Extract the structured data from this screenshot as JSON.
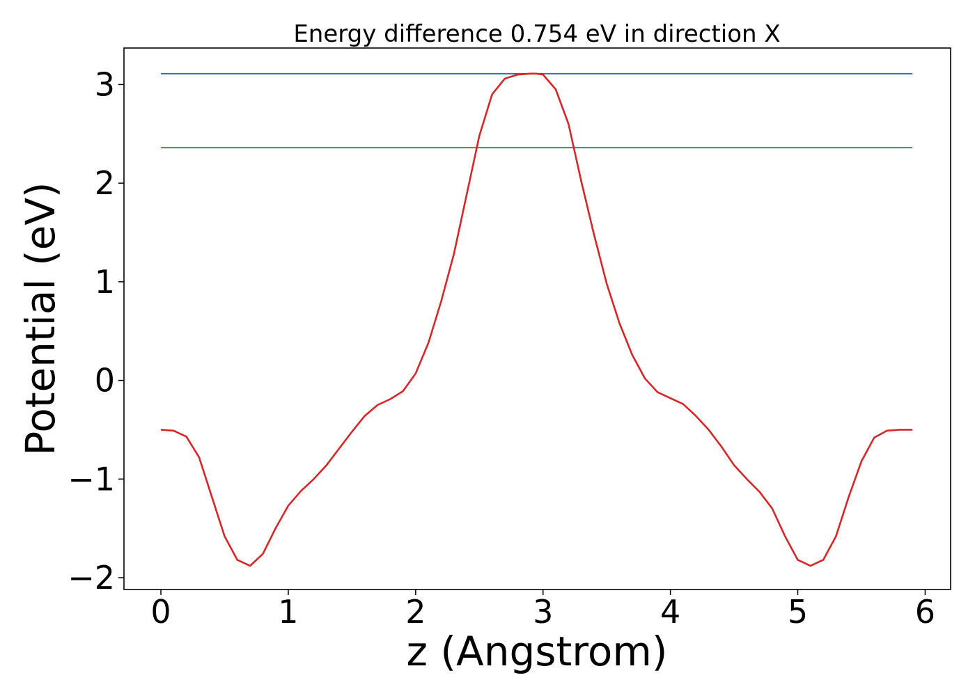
{
  "chart_data": {
    "type": "line",
    "title": "Energy difference 0.754 eV in direction X",
    "xlabel": "z (Angstrom)",
    "ylabel": "Potential (eV)",
    "xlim": [
      -0.29,
      6.2
    ],
    "ylim": [
      -2.12,
      3.37
    ],
    "grid": false,
    "x_ticks": [
      0,
      1,
      2,
      3,
      4,
      5,
      6
    ],
    "x_tick_labels": [
      "0",
      "1",
      "2",
      "3",
      "4",
      "5",
      "6"
    ],
    "y_ticks": [
      -2,
      -1,
      0,
      1,
      2,
      3
    ],
    "y_tick_labels": [
      "−2",
      "−1",
      "0",
      "1",
      "2",
      "3"
    ],
    "series": [
      {
        "color": "#1f77b4",
        "x": [
          0,
          5.9
        ],
        "y": [
          3.11,
          3.11
        ]
      },
      {
        "color": "#2ca02c",
        "x": [
          0,
          5.9
        ],
        "y": [
          2.36,
          2.36
        ]
      },
      {
        "color": "#d62728",
        "x": [
          0,
          0.1,
          0.2,
          0.3,
          0.4,
          0.5,
          0.6,
          0.7,
          0.8,
          0.9,
          1.0,
          1.1,
          1.2,
          1.3,
          1.4,
          1.5,
          1.6,
          1.7,
          1.8,
          1.9,
          2.0,
          2.1,
          2.2,
          2.3,
          2.4,
          2.5,
          2.6,
          2.7,
          2.8,
          2.9,
          2.95,
          3.0,
          3.1,
          3.2,
          3.3,
          3.4,
          3.5,
          3.6,
          3.7,
          3.8,
          3.9,
          4.0,
          4.1,
          4.2,
          4.3,
          4.4,
          4.5,
          4.6,
          4.7,
          4.8,
          4.9,
          5.0,
          5.1,
          5.2,
          5.3,
          5.4,
          5.5,
          5.6,
          5.7,
          5.8,
          5.9
        ],
        "y": [
          -0.5,
          -0.51,
          -0.57,
          -0.78,
          -1.18,
          -1.58,
          -1.82,
          -1.88,
          -1.76,
          -1.5,
          -1.27,
          -1.12,
          -1.0,
          -0.86,
          -0.69,
          -0.52,
          -0.36,
          -0.25,
          -0.19,
          -0.11,
          0.07,
          0.38,
          0.8,
          1.28,
          1.88,
          2.48,
          2.9,
          3.06,
          3.1,
          3.11,
          3.11,
          3.1,
          2.95,
          2.6,
          2.02,
          1.48,
          0.98,
          0.58,
          0.26,
          0.02,
          -0.12,
          -0.18,
          -0.24,
          -0.36,
          -0.5,
          -0.67,
          -0.86,
          -1.0,
          -1.13,
          -1.3,
          -1.58,
          -1.82,
          -1.88,
          -1.82,
          -1.58,
          -1.18,
          -0.82,
          -0.58,
          -0.51,
          -0.5,
          -0.5
        ]
      }
    ]
  }
}
